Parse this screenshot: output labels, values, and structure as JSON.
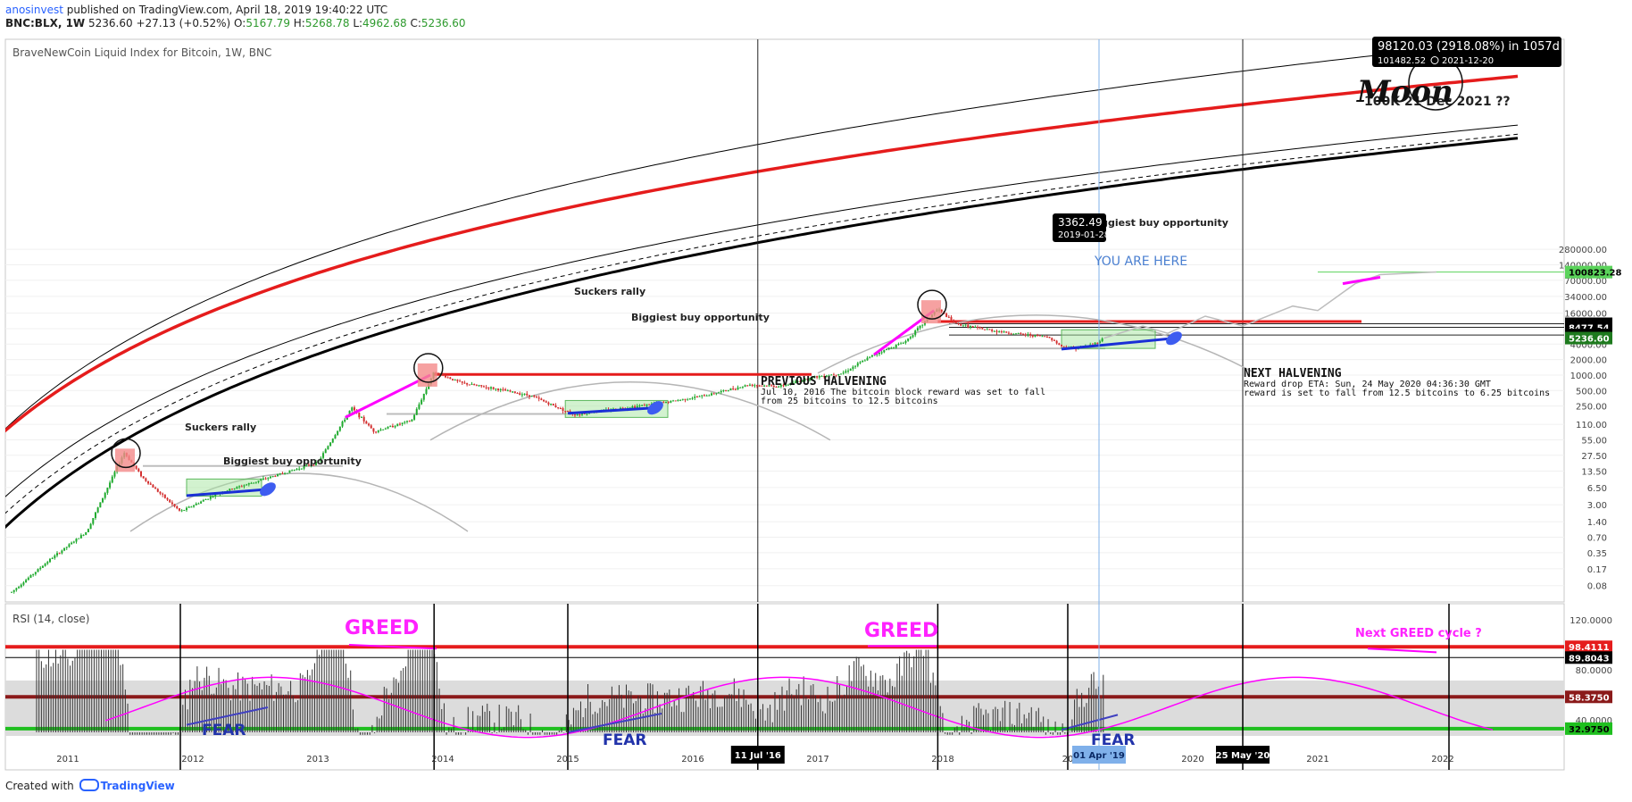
{
  "header": {
    "author": "anosinvest",
    "published": "published on TradingView.com, April 18, 2019 19:40:22 UTC",
    "symbol": "BNC:BLX, 1W",
    "price": "5236.60",
    "change": "+27.13 (+0.52%)",
    "o_label": "O:",
    "o_value": "5167.79",
    "h_label": "H:",
    "h_value": "5268.78",
    "l_label": "L:",
    "l_value": "4962.68",
    "c_label": "C:",
    "c_value": "5236.60"
  },
  "footer": {
    "created_with": "Created with",
    "brand": "TradingView"
  },
  "colors": {
    "up": "#1faa2e",
    "down": "#d32f2f",
    "red_line": "#e51c1c",
    "magenta": "#ff00ff",
    "blue": "#1a2fd6",
    "green_box": "#a5e6a0",
    "rsi_band": "#dcdcdc",
    "rsi_bar": "#333333"
  },
  "chart_data": [
    {
      "type": "candlestick",
      "title": "BraveNewCoin Liquid Index for Bitcoin, 1W, BNC",
      "scale": "log",
      "y_ticks": [
        "280000.00",
        "140000.00",
        "70000.00",
        "34000.00",
        "16000.00",
        "8000.00",
        "4000.00",
        "2000.00",
        "1000.00",
        "500.00",
        "250.00",
        "110.00",
        "55.00",
        "27.50",
        "13.50",
        "6.50",
        "3.00",
        "1.40",
        "0.70",
        "0.35",
        "0.17",
        "0.08"
      ],
      "price_labels": [
        {
          "value": "100823.28",
          "bg": "#5bd35b",
          "fg": "#000000"
        },
        {
          "value": "9953.51",
          "bg": "#000000",
          "fg": "#ffffff"
        },
        {
          "value": "8477.54",
          "bg": "#000000",
          "fg": "#ffffff"
        },
        {
          "value": "6024.64",
          "bg": "#000000",
          "fg": "#ffffff"
        },
        {
          "value": "5236.60",
          "bg": "#1e7a1e",
          "fg": "#ffffff"
        }
      ],
      "tooltip_measure": {
        "line1": "98120.03 (2918.08%) in 1057d",
        "line2a": "101482.52",
        "line2b": "2021-12-20"
      },
      "tooltip_low": {
        "value": "3362.49",
        "date": "2019-01-28"
      },
      "annotations": {
        "moon": "Moon",
        "target": "100K 21 Dec 2021 ??",
        "buy1": "Biggiest buy opportunity",
        "buy2": "Biggiest buy opportunity",
        "buy3": "Biggiest buy opportunity",
        "suckers1": "Suckers rally",
        "suckers2": "Suckers rally",
        "you_are_here": "YOU ARE HERE",
        "prev_halving_title": "PREVIOUS HALVENING",
        "prev_halving_l1": "Jul 10, 2016 The bitcoin block reward was set to fall",
        "prev_halving_l2": "from 25 bitcoins to 12.5 bitcoins",
        "next_halving_title": "NEXT HALVENING",
        "next_halving_l1": "Reward drop ETA: Sun, 24 May 2020 04:36:30 GMT",
        "next_halving_l2": "reward is set to fall from 12.5 bitcoins to 6.25 bitcoins"
      },
      "key_points": [
        {
          "date": "2011-06",
          "value": 31
        },
        {
          "date": "2011-11",
          "value": 2
        },
        {
          "date": "2013-12",
          "value": 1150
        },
        {
          "date": "2015-01",
          "value": 170
        },
        {
          "date": "2017-12",
          "value": 19500
        },
        {
          "date": "2019-01-28",
          "value": 3362.49
        },
        {
          "date": "2019-04-15",
          "value": 5236.6
        }
      ]
    },
    {
      "type": "bar",
      "title": "RSI (14, close)",
      "y_ticks": [
        "120.0000",
        "80.0000",
        "40.0000"
      ],
      "levels": [
        {
          "value": "98.4111",
          "bg": "#e51c1c",
          "fg": "#ffffff"
        },
        {
          "value": "89.8043",
          "bg": "#000000",
          "fg": "#ffffff"
        },
        {
          "value": "58.3750",
          "bg": "#8b1a1a",
          "fg": "#ffffff"
        },
        {
          "value": "32.9750",
          "bg": "#1fbf1f",
          "fg": "#000000"
        }
      ],
      "annotations": {
        "greed1": "GREED",
        "greed2": "GREED",
        "next_greed": "Next GREED cycle ?",
        "fear1": "FEAR",
        "fear2": "FEAR",
        "fear3": "FEAR"
      },
      "x_labels": [
        "2011",
        "2012",
        "2013",
        "2014",
        "2015",
        "2016",
        "2017",
        "2018",
        "20",
        "2020",
        "2021",
        "2022"
      ],
      "x_markers": [
        {
          "label": "11 Jul '16",
          "bg": "#000000",
          "fg": "#ffffff"
        },
        {
          "label": "01 Apr '19",
          "bg": "#7fb0ea",
          "fg": "#0b2a66"
        },
        {
          "label": "25 May '20",
          "bg": "#000000",
          "fg": "#ffffff"
        }
      ]
    }
  ]
}
